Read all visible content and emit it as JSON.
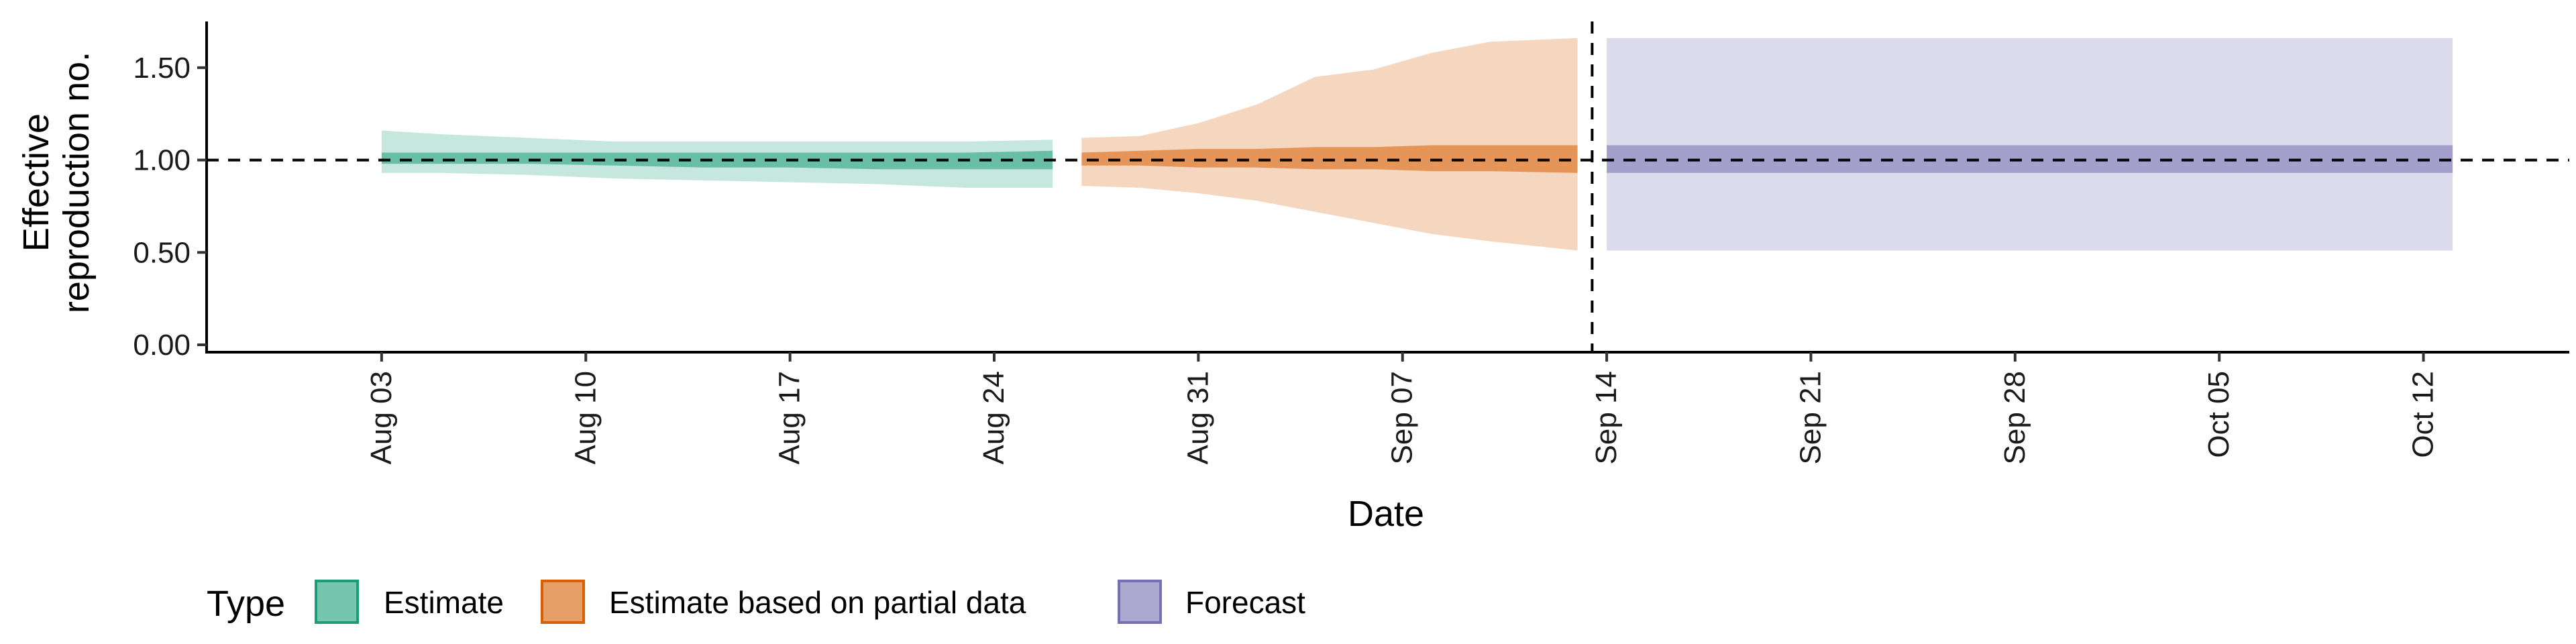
{
  "chart_data": {
    "type": "area",
    "title": "",
    "xlabel": "Date",
    "ylabel_lines": [
      "Effective",
      "reproduction no."
    ],
    "ylim": [
      0,
      1.75
    ],
    "yticks": [
      0.0,
      0.5,
      1.0,
      1.5
    ],
    "ytick_labels": [
      "0.00",
      "0.50",
      "1.00",
      "1.50"
    ],
    "xlim": [
      "2020-07-28",
      "2020-10-17"
    ],
    "xticks": [
      "2020-08-03",
      "2020-08-10",
      "2020-08-17",
      "2020-08-24",
      "2020-08-31",
      "2020-09-07",
      "2020-09-14",
      "2020-09-21",
      "2020-09-28",
      "2020-10-05",
      "2020-10-12"
    ],
    "xtick_labels": [
      "Aug 03",
      "Aug 10",
      "Aug 17",
      "Aug 24",
      "Aug 31",
      "Sep 07",
      "Sep 14",
      "Sep 21",
      "Sep 28",
      "Oct 05",
      "Oct 12"
    ],
    "reference_line_y": 1.0,
    "reference_line_x": "2020-09-13",
    "grid": false,
    "legend": {
      "title": "Type",
      "position": "bottom"
    },
    "series": [
      {
        "name": "Estimate",
        "color": "#1b9e77",
        "dates": [
          "2020-08-03",
          "2020-08-05",
          "2020-08-08",
          "2020-08-11",
          "2020-08-14",
          "2020-08-17",
          "2020-08-20",
          "2020-08-23",
          "2020-08-26"
        ],
        "lower_90": [
          0.93,
          0.93,
          0.92,
          0.9,
          0.89,
          0.88,
          0.87,
          0.85,
          0.85
        ],
        "upper_90": [
          1.16,
          1.14,
          1.12,
          1.1,
          1.1,
          1.1,
          1.1,
          1.1,
          1.11
        ],
        "lower_50": [
          0.98,
          0.98,
          0.98,
          0.97,
          0.96,
          0.96,
          0.95,
          0.95,
          0.95
        ],
        "upper_50": [
          1.04,
          1.04,
          1.04,
          1.04,
          1.04,
          1.04,
          1.04,
          1.04,
          1.05
        ]
      },
      {
        "name": "Estimate based on partial data",
        "color": "#d95f02",
        "dates": [
          "2020-08-27",
          "2020-08-29",
          "2020-08-31",
          "2020-09-02",
          "2020-09-04",
          "2020-09-06",
          "2020-09-08",
          "2020-09-10",
          "2020-09-13"
        ],
        "lower_90": [
          0.86,
          0.85,
          0.82,
          0.78,
          0.72,
          0.66,
          0.6,
          0.56,
          0.51
        ],
        "upper_90": [
          1.12,
          1.13,
          1.2,
          1.3,
          1.45,
          1.49,
          1.58,
          1.64,
          1.66
        ],
        "lower_50": [
          0.97,
          0.97,
          0.96,
          0.96,
          0.95,
          0.95,
          0.94,
          0.94,
          0.93
        ],
        "upper_50": [
          1.04,
          1.05,
          1.06,
          1.06,
          1.07,
          1.07,
          1.08,
          1.08,
          1.08
        ]
      },
      {
        "name": "Forecast",
        "color": "#7570b3",
        "dates": [
          "2020-09-14",
          "2020-10-13"
        ],
        "lower_90": [
          0.51,
          0.51
        ],
        "upper_90": [
          1.66,
          1.66
        ],
        "lower_50": [
          0.93,
          0.93
        ],
        "upper_50": [
          1.08,
          1.08
        ]
      }
    ]
  }
}
